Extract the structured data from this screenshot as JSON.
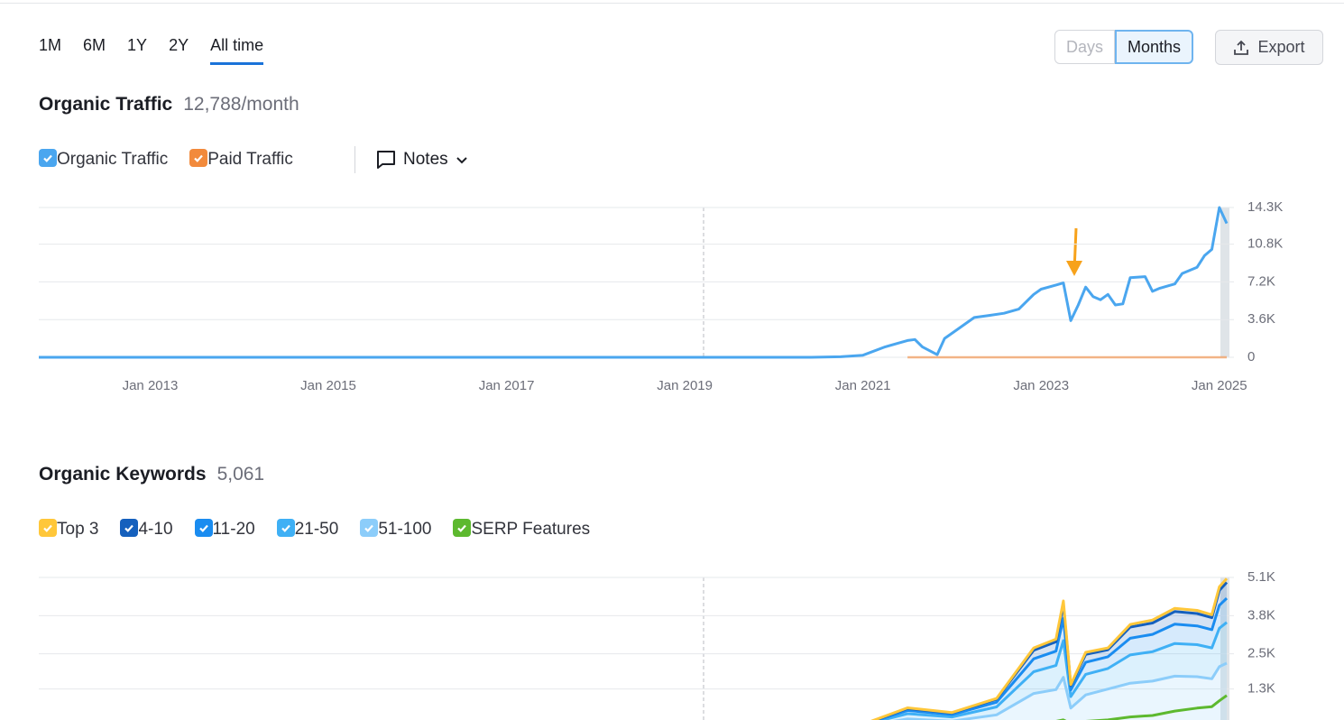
{
  "tabs": [
    {
      "label": "1M",
      "selected": false
    },
    {
      "label": "6M",
      "selected": false
    },
    {
      "label": "1Y",
      "selected": false
    },
    {
      "label": "2Y",
      "selected": false
    },
    {
      "label": "All time",
      "selected": true
    }
  ],
  "granularity": [
    {
      "label": "Days",
      "selected": false
    },
    {
      "label": "Months",
      "selected": true
    }
  ],
  "export": "Export",
  "notes": "Notes",
  "chart_data": [
    {
      "type": "line",
      "title": "Organic Traffic",
      "subtitle": "12,788/month",
      "x": [
        "2011-10",
        "2020-06",
        "2020-10",
        "2021-01",
        "2021-04",
        "2021-07",
        "2021-08",
        "2021-09",
        "2021-11",
        "2021-12",
        "2022-02",
        "2022-04",
        "2022-06",
        "2022-08",
        "2022-10",
        "2022-12",
        "2023-01",
        "2023-03",
        "2023-04",
        "2023-05",
        "2023-06",
        "2023-07",
        "2023-08",
        "2023-09",
        "2023-10",
        "2023-11",
        "2023-12",
        "2024-01",
        "2024-03",
        "2024-04",
        "2024-05",
        "2024-07",
        "2024-08",
        "2024-10",
        "2024-11",
        "2024-12",
        "2025-01",
        "2025-02"
      ],
      "series": [
        {
          "name": "Organic Traffic",
          "color": "#4aa6ef",
          "values": [
            0,
            0,
            50,
            200,
            1000,
            1600,
            1700,
            1000,
            250,
            1800,
            2800,
            3800,
            4000,
            4200,
            4600,
            6000,
            6500,
            6900,
            7100,
            3500,
            5000,
            6700,
            5800,
            5500,
            6000,
            5000,
            5100,
            7600,
            7700,
            6300,
            6600,
            7000,
            8000,
            8600,
            9700,
            10300,
            14300,
            12788
          ]
        },
        {
          "name": "Paid Traffic",
          "color": "#f28a3c",
          "values": [
            null,
            null,
            null,
            null,
            null,
            0,
            0,
            0,
            0,
            0,
            0,
            0,
            0,
            0,
            0,
            0,
            0,
            0,
            0,
            0,
            0,
            0,
            0,
            0,
            0,
            0,
            0,
            0,
            0,
            0,
            0,
            0,
            0,
            0,
            0,
            0,
            0,
            0
          ]
        }
      ],
      "xlim": [
        "2011-10",
        "2025-02"
      ],
      "xticks": [
        {
          "value": "2013-01",
          "label": "Jan 2013"
        },
        {
          "value": "2015-01",
          "label": "Jan 2015"
        },
        {
          "value": "2017-01",
          "label": "Jan 2017"
        },
        {
          "value": "2019-01",
          "label": "Jan 2019"
        },
        {
          "value": "2021-01",
          "label": "Jan 2021"
        },
        {
          "value": "2023-01",
          "label": "Jan 2023"
        },
        {
          "value": "2025-01",
          "label": "Jan 2025"
        }
      ],
      "ylim": [
        0,
        14300
      ],
      "yticks": [
        0,
        {
          "value": 3600,
          "label": "3.6K"
        },
        {
          "value": 7200,
          "label": "7.2K"
        },
        {
          "value": 10800,
          "label": "10.8K"
        },
        {
          "value": 14300,
          "label": "14.3K"
        }
      ],
      "grid": true
    },
    {
      "type": "area",
      "title": "Organic Keywords",
      "subtitle": "5,061",
      "stacked": true,
      "x": [
        "2011-10",
        "2020-06",
        "2021-01",
        "2021-07",
        "2022-01",
        "2022-07",
        "2022-12",
        "2023-03",
        "2023-04",
        "2023-05",
        "2023-07",
        "2023-10",
        "2024-01",
        "2024-04",
        "2024-07",
        "2024-10",
        "2024-12",
        "2025-01",
        "2025-02"
      ],
      "series": [
        {
          "name": "Top 3",
          "color": "#ffc73a",
          "values": [
            0,
            0,
            5,
            20,
            15,
            25,
            80,
            90,
            120,
            30,
            70,
            60,
            90,
            100,
            110,
            110,
            100,
            120,
            131
          ]
        },
        {
          "name": "4-10",
          "color": "#1560bd",
          "values": [
            0,
            0,
            10,
            70,
            55,
            105,
            290,
            320,
            480,
            150,
            270,
            240,
            380,
            390,
            430,
            420,
            410,
            510,
            540
          ]
        },
        {
          "name": "11-20",
          "color": "#1a8cf0",
          "values": [
            0,
            0,
            15,
            110,
            80,
            160,
            440,
            490,
            750,
            230,
            410,
            400,
            570,
            590,
            660,
            640,
            620,
            780,
            820
          ]
        },
        {
          "name": "21-50",
          "color": "#3fb0f5",
          "values": [
            0,
            0,
            30,
            180,
            140,
            270,
            740,
            820,
            1250,
            390,
            700,
            700,
            960,
            1000,
            1110,
            1090,
            1050,
            1310,
            1390
          ]
        },
        {
          "name": "51-100",
          "color": "#8ccdfa",
          "values": [
            0,
            0,
            40,
            280,
            210,
            420,
            1150,
            1280,
            1700,
            650,
            1100,
            1300,
            1500,
            1570,
            1740,
            1720,
            1650,
            2060,
            2180
          ]
        },
        {
          "name": "SERP Features",
          "color": "#5db92f",
          "stack": false,
          "values": [
            0,
            0,
            0,
            20,
            30,
            60,
            150,
            200,
            250,
            120,
            200,
            250,
            350,
            400,
            550,
            650,
            700,
            900,
            1080
          ]
        }
      ],
      "xlim": [
        "2011-10",
        "2025-02"
      ],
      "ylim": [
        0,
        5100
      ],
      "yticks": [
        {
          "value": 1300,
          "label": "1.3K"
        },
        {
          "value": 2500,
          "label": "2.5K"
        },
        {
          "value": 3800,
          "label": "3.8K"
        },
        {
          "value": 5100,
          "label": "5.1K"
        }
      ],
      "grid": true
    }
  ]
}
